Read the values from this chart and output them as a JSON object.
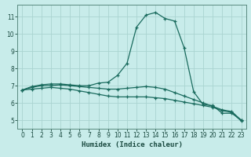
{
  "xlabel": "Humidex (Indice chaleur)",
  "ylabel": "",
  "xlim": [
    -0.5,
    23.5
  ],
  "ylim": [
    4.5,
    11.7
  ],
  "xticks": [
    0,
    1,
    2,
    3,
    4,
    5,
    6,
    7,
    8,
    9,
    10,
    11,
    12,
    13,
    14,
    15,
    16,
    17,
    18,
    19,
    20,
    21,
    22,
    23
  ],
  "yticks": [
    5,
    6,
    7,
    8,
    9,
    10,
    11
  ],
  "bg_color": "#c8ecea",
  "grid_color": "#aad4d0",
  "line_color": "#1a6b5e",
  "series": [
    [
      6.75,
      6.95,
      7.05,
      7.1,
      7.1,
      7.05,
      7.0,
      7.0,
      7.15,
      7.2,
      7.6,
      8.3,
      10.4,
      11.1,
      11.25,
      10.9,
      10.75,
      9.2,
      6.65,
      5.9,
      5.85,
      5.4,
      5.4,
      5.0
    ],
    [
      6.75,
      6.9,
      7.0,
      7.0,
      7.05,
      7.0,
      6.95,
      6.9,
      6.85,
      6.8,
      6.8,
      6.85,
      6.9,
      6.95,
      6.9,
      6.8,
      6.6,
      6.4,
      6.2,
      6.0,
      5.8,
      5.6,
      5.5,
      5.0
    ],
    [
      6.75,
      6.8,
      6.85,
      6.9,
      6.85,
      6.8,
      6.7,
      6.6,
      6.5,
      6.4,
      6.35,
      6.35,
      6.35,
      6.35,
      6.3,
      6.25,
      6.15,
      6.05,
      5.95,
      5.85,
      5.75,
      5.55,
      5.45,
      4.95
    ]
  ],
  "marker": "+",
  "tick_fontsize": 5.5,
  "xlabel_fontsize": 6.5
}
